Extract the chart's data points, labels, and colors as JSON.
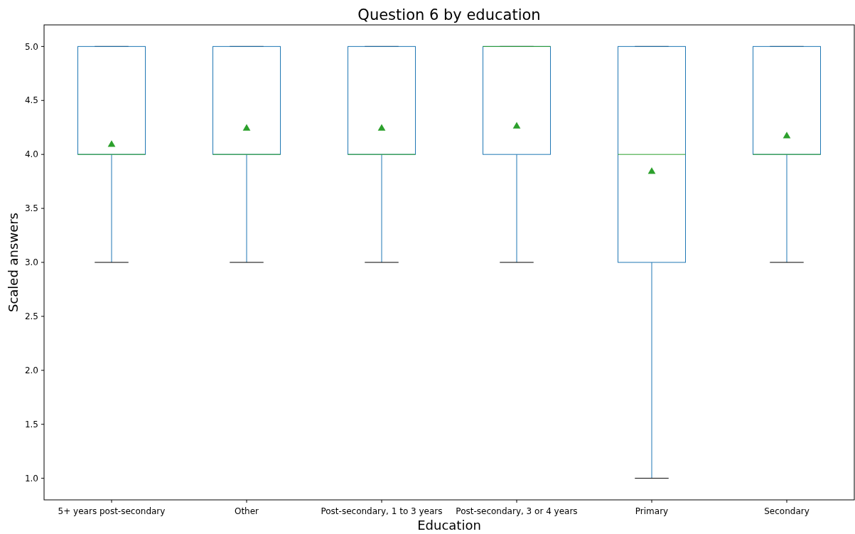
{
  "chart_data": {
    "type": "box",
    "title": "Question 6 by education",
    "xlabel": "Education",
    "ylabel": "Scaled answers",
    "categories": [
      "5+ years post-secondary",
      "Other",
      "Post-secondary, 1 to 3 years",
      "Post-secondary, 3 or 4 years",
      "Primary",
      "Secondary"
    ],
    "color": "#1f77b4",
    "boxes": [
      {
        "low": 3,
        "q1": 4,
        "median": 4,
        "q3": 5,
        "high": 5,
        "mean": 4.09
      },
      {
        "low": 3,
        "q1": 4,
        "median": 4,
        "q3": 5,
        "high": 5,
        "mean": 4.24
      },
      {
        "low": 3,
        "q1": 4,
        "median": 4,
        "q3": 5,
        "high": 5,
        "mean": 4.24
      },
      {
        "low": 3,
        "q1": 4,
        "median": 5,
        "q3": 5,
        "high": 5,
        "mean": 4.26
      },
      {
        "low": 1,
        "q1": 3,
        "median": 4,
        "q3": 5,
        "high": 5,
        "mean": 3.84
      },
      {
        "low": 3,
        "q1": 4,
        "median": 4,
        "q3": 5,
        "high": 5,
        "mean": 4.17
      }
    ],
    "ylim": [
      0.8,
      5.2
    ],
    "yticks": [
      {
        "value": 1,
        "label": "1.0"
      },
      {
        "value": 1.5,
        "label": "1.5"
      },
      {
        "value": 2,
        "label": "2.0"
      },
      {
        "value": 2.5,
        "label": "2.5"
      },
      {
        "value": 3,
        "label": "3.0"
      },
      {
        "value": 3.5,
        "label": "3.5"
      },
      {
        "value": 4,
        "label": "4.0"
      },
      {
        "value": 4.5,
        "label": "4.5"
      },
      {
        "value": 5,
        "label": "5.0"
      }
    ]
  }
}
